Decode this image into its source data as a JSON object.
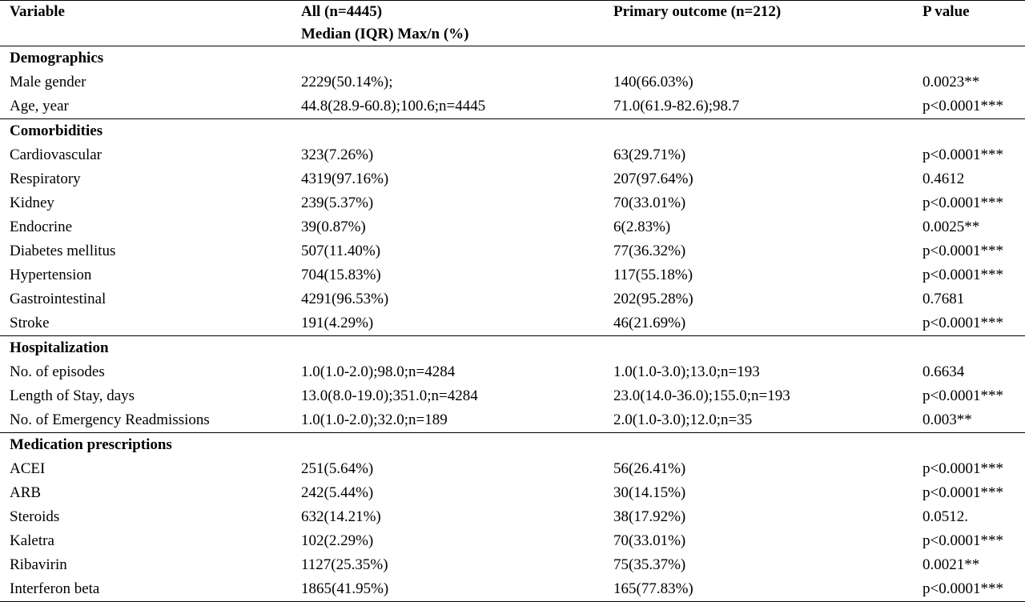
{
  "header": {
    "variable": "Variable",
    "all": "All (n=4445)",
    "all_sub": "Median (IQR) Max/n (%)",
    "primary": "Primary outcome (n=212)",
    "pvalue": "P value"
  },
  "sections": [
    {
      "title": "Demographics",
      "rows": [
        {
          "variable": "Male gender",
          "all": "2229(50.14%);",
          "primary": "140(66.03%)",
          "p": "0.0023**"
        },
        {
          "variable": "Age, year",
          "all": "44.8(28.9-60.8);100.6;n=4445",
          "primary": "71.0(61.9-82.6);98.7",
          "p": "p<0.0001***"
        }
      ]
    },
    {
      "title": "Comorbidities",
      "rows": [
        {
          "variable": "Cardiovascular",
          "all": "323(7.26%)",
          "primary": "63(29.71%)",
          "p": "p<0.0001***"
        },
        {
          "variable": "Respiratory",
          "all": "4319(97.16%)",
          "primary": "207(97.64%)",
          "p": "0.4612"
        },
        {
          "variable": "Kidney",
          "all": "239(5.37%)",
          "primary": "70(33.01%)",
          "p": "p<0.0001***"
        },
        {
          "variable": "Endocrine",
          "all": "39(0.87%)",
          "primary": "6(2.83%)",
          "p": "0.0025**"
        },
        {
          "variable": "Diabetes mellitus",
          "all": "507(11.40%)",
          "primary": "77(36.32%)",
          "p": "p<0.0001***"
        },
        {
          "variable": "Hypertension",
          "all": "704(15.83%)",
          "primary": "117(55.18%)",
          "p": "p<0.0001***"
        },
        {
          "variable": "Gastrointestinal",
          "all": "4291(96.53%)",
          "primary": "202(95.28%)",
          "p": "0.7681"
        },
        {
          "variable": "Stroke",
          "all": "191(4.29%)",
          "primary": "46(21.69%)",
          "p": "p<0.0001***"
        }
      ]
    },
    {
      "title": "Hospitalization",
      "rows": [
        {
          "variable": "No. of episodes",
          "all": "1.0(1.0-2.0);98.0;n=4284",
          "primary": "1.0(1.0-3.0);13.0;n=193",
          "p": "0.6634"
        },
        {
          "variable": "Length of Stay, days",
          "all": "13.0(8.0-19.0);351.0;n=4284",
          "primary": "23.0(14.0-36.0);155.0;n=193",
          "p": "p<0.0001***"
        },
        {
          "variable": "No. of Emergency Readmissions",
          "all": "1.0(1.0-2.0);32.0;n=189",
          "primary": "2.0(1.0-3.0);12.0;n=35",
          "p": "0.003**"
        }
      ]
    },
    {
      "title": "Medication prescriptions",
      "rows": [
        {
          "variable": "ACEI",
          "all": "251(5.64%)",
          "primary": "56(26.41%)",
          "p": "p<0.0001***"
        },
        {
          "variable": "ARB",
          "all": "242(5.44%)",
          "primary": "30(14.15%)",
          "p": "p<0.0001***"
        },
        {
          "variable": "Steroids",
          "all": "632(14.21%)",
          "primary": "38(17.92%)",
          "p": "0.0512."
        },
        {
          "variable": "Kaletra",
          "all": "102(2.29%)",
          "primary": "70(33.01%)",
          "p": "p<0.0001***"
        },
        {
          "variable": "Ribavirin",
          "all": "1127(25.35%)",
          "primary": "75(35.37%)",
          "p": "0.0021**"
        },
        {
          "variable": "Interferon beta",
          "all": "1865(41.95%)",
          "primary": "165(77.83%)",
          "p": "p<0.0001***"
        }
      ]
    }
  ]
}
